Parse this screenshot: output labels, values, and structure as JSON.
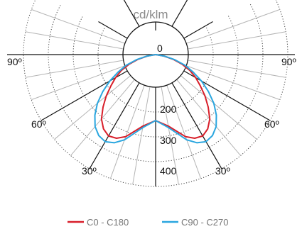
{
  "chart_data": {
    "type": "polar-line",
    "title": "cd/klm",
    "angle_labels": [
      {
        "text": "90º",
        "angle": -90
      },
      {
        "text": "60º",
        "angle": -60
      },
      {
        "text": "30º",
        "angle": -30
      },
      {
        "text": "0",
        "angle": 0
      },
      {
        "text": "30º",
        "angle": 30
      },
      {
        "text": "60º",
        "angle": 60
      },
      {
        "text": "90º",
        "angle": 90
      }
    ],
    "radial_ticks": [
      100,
      200,
      300,
      400
    ],
    "radial_labels": [
      "200",
      "300",
      "400"
    ],
    "rmax": 400,
    "series": [
      {
        "name": "C0 - C180",
        "color": "#d81f2a",
        "angles": [
          0,
          10,
          20,
          25,
          30,
          35,
          40,
          45,
          50,
          55,
          60,
          65,
          70,
          75,
          80,
          90
        ],
        "values": [
          200,
          220,
          265,
          280,
          285,
          275,
          255,
          225,
          195,
          165,
          140,
          115,
          85,
          55,
          25,
          0
        ]
      },
      {
        "name": "C90 - C270",
        "color": "#2aa6df",
        "angles": [
          0,
          10,
          20,
          25,
          30,
          35,
          40,
          45,
          50,
          55,
          60,
          65,
          70,
          75,
          80,
          90
        ],
        "values": [
          200,
          225,
          275,
          295,
          305,
          300,
          285,
          260,
          230,
          195,
          160,
          125,
          95,
          60,
          28,
          0
        ]
      }
    ]
  }
}
